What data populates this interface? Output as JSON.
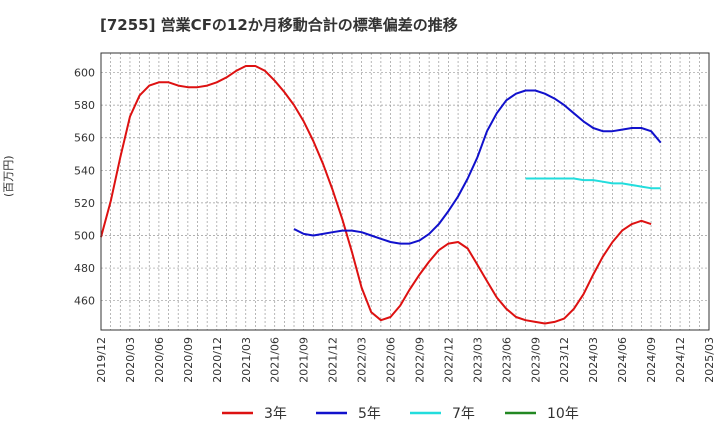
{
  "chart_data": {
    "type": "line",
    "title": "[7255]  営業CFの12か月移動合計の標準偏差の推移",
    "ylabel": "(百万円)",
    "xlabel": "",
    "ylim": [
      442,
      612
    ],
    "yticks": [
      460,
      480,
      500,
      520,
      540,
      560,
      580,
      600
    ],
    "xticks": [
      "2019/12",
      "2020/03",
      "2020/06",
      "2020/09",
      "2020/12",
      "2021/03",
      "2021/06",
      "2021/09",
      "2021/12",
      "2022/03",
      "2022/06",
      "2022/09",
      "2022/12",
      "2023/03",
      "2023/06",
      "2023/09",
      "2023/12",
      "2024/03",
      "2024/06",
      "2024/09",
      "2024/12",
      "2025/03"
    ],
    "grid": true,
    "legend_position": "bottom",
    "series": [
      {
        "name": "3年",
        "color": "#dd1111",
        "points": [
          [
            "2019/12",
            499
          ],
          [
            "2020/01",
            521
          ],
          [
            "2020/02",
            548
          ],
          [
            "2020/03",
            573
          ],
          [
            "2020/04",
            586
          ],
          [
            "2020/05",
            592
          ],
          [
            "2020/06",
            594
          ],
          [
            "2020/07",
            594
          ],
          [
            "2020/08",
            592
          ],
          [
            "2020/09",
            591
          ],
          [
            "2020/10",
            591
          ],
          [
            "2020/11",
            592
          ],
          [
            "2020/12",
            594
          ],
          [
            "2021/01",
            597
          ],
          [
            "2021/02",
            601
          ],
          [
            "2021/03",
            604
          ],
          [
            "2021/04",
            604
          ],
          [
            "2021/05",
            601
          ],
          [
            "2021/06",
            595
          ],
          [
            "2021/07",
            588
          ],
          [
            "2021/08",
            580
          ],
          [
            "2021/09",
            570
          ],
          [
            "2021/10",
            558
          ],
          [
            "2021/11",
            544
          ],
          [
            "2021/12",
            528
          ],
          [
            "2022/01",
            510
          ],
          [
            "2022/02",
            490
          ],
          [
            "2022/03",
            468
          ],
          [
            "2022/04",
            453
          ],
          [
            "2022/05",
            448
          ],
          [
            "2022/06",
            450
          ],
          [
            "2022/07",
            457
          ],
          [
            "2022/08",
            467
          ],
          [
            "2022/09",
            476
          ],
          [
            "2022/10",
            484
          ],
          [
            "2022/11",
            491
          ],
          [
            "2022/12",
            495
          ],
          [
            "2023/01",
            496
          ],
          [
            "2023/02",
            492
          ],
          [
            "2023/03",
            482
          ],
          [
            "2023/04",
            472
          ],
          [
            "2023/05",
            462
          ],
          [
            "2023/06",
            455
          ],
          [
            "2023/07",
            450
          ],
          [
            "2023/08",
            448
          ],
          [
            "2023/09",
            447
          ],
          [
            "2023/10",
            446
          ],
          [
            "2023/11",
            447
          ],
          [
            "2023/12",
            449
          ],
          [
            "2024/01",
            455
          ],
          [
            "2024/02",
            464
          ],
          [
            "2024/03",
            476
          ],
          [
            "2024/04",
            487
          ],
          [
            "2024/05",
            496
          ],
          [
            "2024/06",
            503
          ],
          [
            "2024/07",
            507
          ],
          [
            "2024/08",
            509
          ],
          [
            "2024/09",
            507
          ]
        ]
      },
      {
        "name": "5年",
        "color": "#1111cc",
        "points": [
          [
            "2021/08",
            504
          ],
          [
            "2021/09",
            501
          ],
          [
            "2021/10",
            500
          ],
          [
            "2021/11",
            501
          ],
          [
            "2021/12",
            502
          ],
          [
            "2022/01",
            503
          ],
          [
            "2022/02",
            503
          ],
          [
            "2022/03",
            502
          ],
          [
            "2022/04",
            500
          ],
          [
            "2022/05",
            498
          ],
          [
            "2022/06",
            496
          ],
          [
            "2022/07",
            495
          ],
          [
            "2022/08",
            495
          ],
          [
            "2022/09",
            497
          ],
          [
            "2022/10",
            501
          ],
          [
            "2022/11",
            507
          ],
          [
            "2022/12",
            515
          ],
          [
            "2023/01",
            524
          ],
          [
            "2023/02",
            535
          ],
          [
            "2023/03",
            548
          ],
          [
            "2023/04",
            564
          ],
          [
            "2023/05",
            575
          ],
          [
            "2023/06",
            583
          ],
          [
            "2023/07",
            587
          ],
          [
            "2023/08",
            589
          ],
          [
            "2023/09",
            589
          ],
          [
            "2023/10",
            587
          ],
          [
            "2023/11",
            584
          ],
          [
            "2023/12",
            580
          ],
          [
            "2024/01",
            575
          ],
          [
            "2024/02",
            570
          ],
          [
            "2024/03",
            566
          ],
          [
            "2024/04",
            564
          ],
          [
            "2024/05",
            564
          ],
          [
            "2024/06",
            565
          ],
          [
            "2024/07",
            566
          ],
          [
            "2024/08",
            566
          ],
          [
            "2024/09",
            564
          ],
          [
            "2024/10",
            557
          ]
        ]
      },
      {
        "name": "7年",
        "color": "#22dddd",
        "points": [
          [
            "2023/08",
            535
          ],
          [
            "2023/09",
            535
          ],
          [
            "2023/10",
            535
          ],
          [
            "2023/11",
            535
          ],
          [
            "2023/12",
            535
          ],
          [
            "2024/01",
            535
          ],
          [
            "2024/02",
            534
          ],
          [
            "2024/03",
            534
          ],
          [
            "2024/04",
            533
          ],
          [
            "2024/05",
            532
          ],
          [
            "2024/06",
            532
          ],
          [
            "2024/07",
            531
          ],
          [
            "2024/08",
            530
          ],
          [
            "2024/09",
            529
          ],
          [
            "2024/10",
            529
          ]
        ]
      },
      {
        "name": "10年",
        "color": "#228822",
        "points": []
      }
    ]
  }
}
